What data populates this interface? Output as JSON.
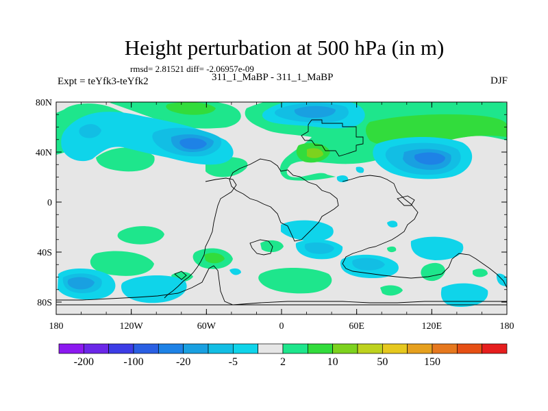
{
  "title": "Height perturbation at 500 hPa (in m)",
  "stats_line": "rmsd= 2.81521 diff= -2.06957e-09",
  "subtitle": "311_1_MaBP - 311_1_MaBP",
  "experiment_label": "Expt = teYfk3-teYfk2",
  "season_label": "DJF",
  "y_axis": {
    "ticks": [
      "80N",
      "40N",
      "0",
      "40S",
      "80S"
    ]
  },
  "x_axis": {
    "ticks": [
      "180",
      "120W",
      "60W",
      "0",
      "60E",
      "120E",
      "180"
    ]
  },
  "colorbar": {
    "colors": [
      "#8c19f0",
      "#6b27e8",
      "#3c3ce6",
      "#2a5fe3",
      "#1e82e6",
      "#19a0e1",
      "#12bee4",
      "#0fd4ea",
      "#e6e6e6",
      "#1ee68c",
      "#32dc3c",
      "#7dd21e",
      "#bed21e",
      "#e6c81e",
      "#e6a01e",
      "#e6781e",
      "#e64f14",
      "#e61e1e"
    ],
    "labels": [
      "-200",
      "-100",
      "-20",
      "-5",
      "2",
      "10",
      "50",
      "150"
    ]
  }
}
